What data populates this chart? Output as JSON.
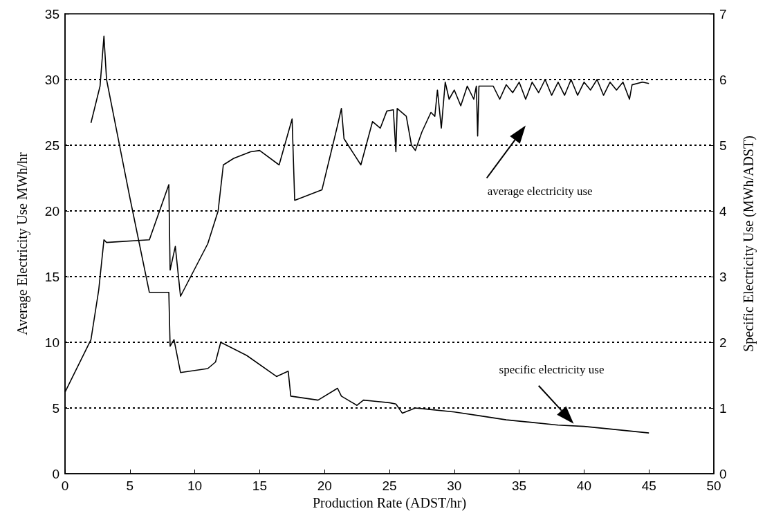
{
  "chart_data": {
    "type": "line",
    "xlabel": "Production Rate (ADST/hr)",
    "ylabel": "Average Electricity Use MWh/hr",
    "y2label": "Specific Electricity Use (MWh/ADST)",
    "xlim": [
      0,
      50
    ],
    "xticks": [
      0,
      5,
      10,
      15,
      20,
      25,
      30,
      35,
      40,
      45,
      50
    ],
    "ylim": [
      0,
      35
    ],
    "yticks": [
      0,
      5,
      10,
      15,
      20,
      25,
      30,
      35
    ],
    "y2lim": [
      0,
      7
    ],
    "y2ticks": [
      0,
      1,
      2,
      3,
      4,
      5,
      6,
      7
    ],
    "grid": "y",
    "marker": "none",
    "line_style": "solid",
    "annotations": [
      "average electricity use",
      "specific electricity use"
    ],
    "series": [
      {
        "color": "#000000",
        "x": [
          0,
          2,
          2.6,
          3,
          3.2,
          6.5,
          8,
          8.1,
          8.5,
          8.9,
          11,
          11.8,
          12.2,
          13,
          14.3,
          15,
          16.5,
          17.5,
          17.7,
          19.8,
          21,
          21.3,
          21.5,
          22.8,
          23.7,
          24.3,
          24.8,
          25.3,
          25.5,
          25.6,
          26.3,
          26.7,
          27,
          27.5,
          28.2,
          28.5,
          28.7,
          29,
          29.3,
          29.6,
          30,
          30.5,
          31,
          31.5,
          31.7,
          31.8,
          31.9,
          33,
          33.5,
          34,
          34.5,
          35,
          35.5,
          36,
          36.5,
          37,
          37.5,
          38,
          38.5,
          39,
          39.5,
          40,
          40.5,
          41,
          41.5,
          42,
          42.5,
          43,
          43.5,
          43.7,
          44.5,
          45
        ],
        "values": [
          6.2,
          10.2,
          14,
          17.8,
          17.6,
          17.8,
          22,
          15.5,
          17.3,
          13.5,
          17.5,
          20,
          23.5,
          24,
          24.5,
          24.6,
          23.5,
          27,
          20.8,
          21.6,
          26.5,
          27.8,
          25.5,
          23.5,
          26.8,
          26.3,
          27.6,
          27.7,
          24.5,
          27.8,
          27.2,
          25,
          24.6,
          26,
          27.5,
          27.2,
          29.2,
          26.3,
          29.8,
          28.5,
          29.2,
          28,
          29.5,
          28.5,
          29.5,
          25.7,
          29.5,
          29.5,
          28.5,
          29.6,
          29,
          29.8,
          28.5,
          29.8,
          29,
          30,
          28.8,
          29.8,
          28.8,
          30,
          28.8,
          29.8,
          29.2,
          30,
          28.8,
          29.8,
          29.2,
          29.8,
          28.5,
          29.6,
          29.8,
          29.7
        ]
      },
      {
        "color": "#000000",
        "axis": "y2",
        "x": [
          2,
          2.7,
          3,
          3.2,
          5,
          6.5,
          8,
          8.1,
          8.4,
          8.9,
          11,
          11.6,
          12,
          14,
          16.3,
          17.2,
          17.4,
          19.5,
          21,
          21.3,
          22.5,
          23,
          24,
          25,
          25.5,
          26,
          27,
          28,
          30,
          32,
          34,
          36,
          38,
          40,
          42,
          45
        ],
        "values": [
          5.34,
          5.9,
          6.66,
          6,
          4.2,
          2.76,
          2.76,
          1.94,
          2.04,
          1.54,
          1.6,
          1.7,
          2,
          1.8,
          1.48,
          1.56,
          1.18,
          1.12,
          1.3,
          1.18,
          1.04,
          1.12,
          1.1,
          1.08,
          1.06,
          0.92,
          1,
          0.98,
          0.94,
          0.88,
          0.82,
          0.78,
          0.74,
          0.72,
          0.68,
          0.62
        ]
      }
    ]
  }
}
